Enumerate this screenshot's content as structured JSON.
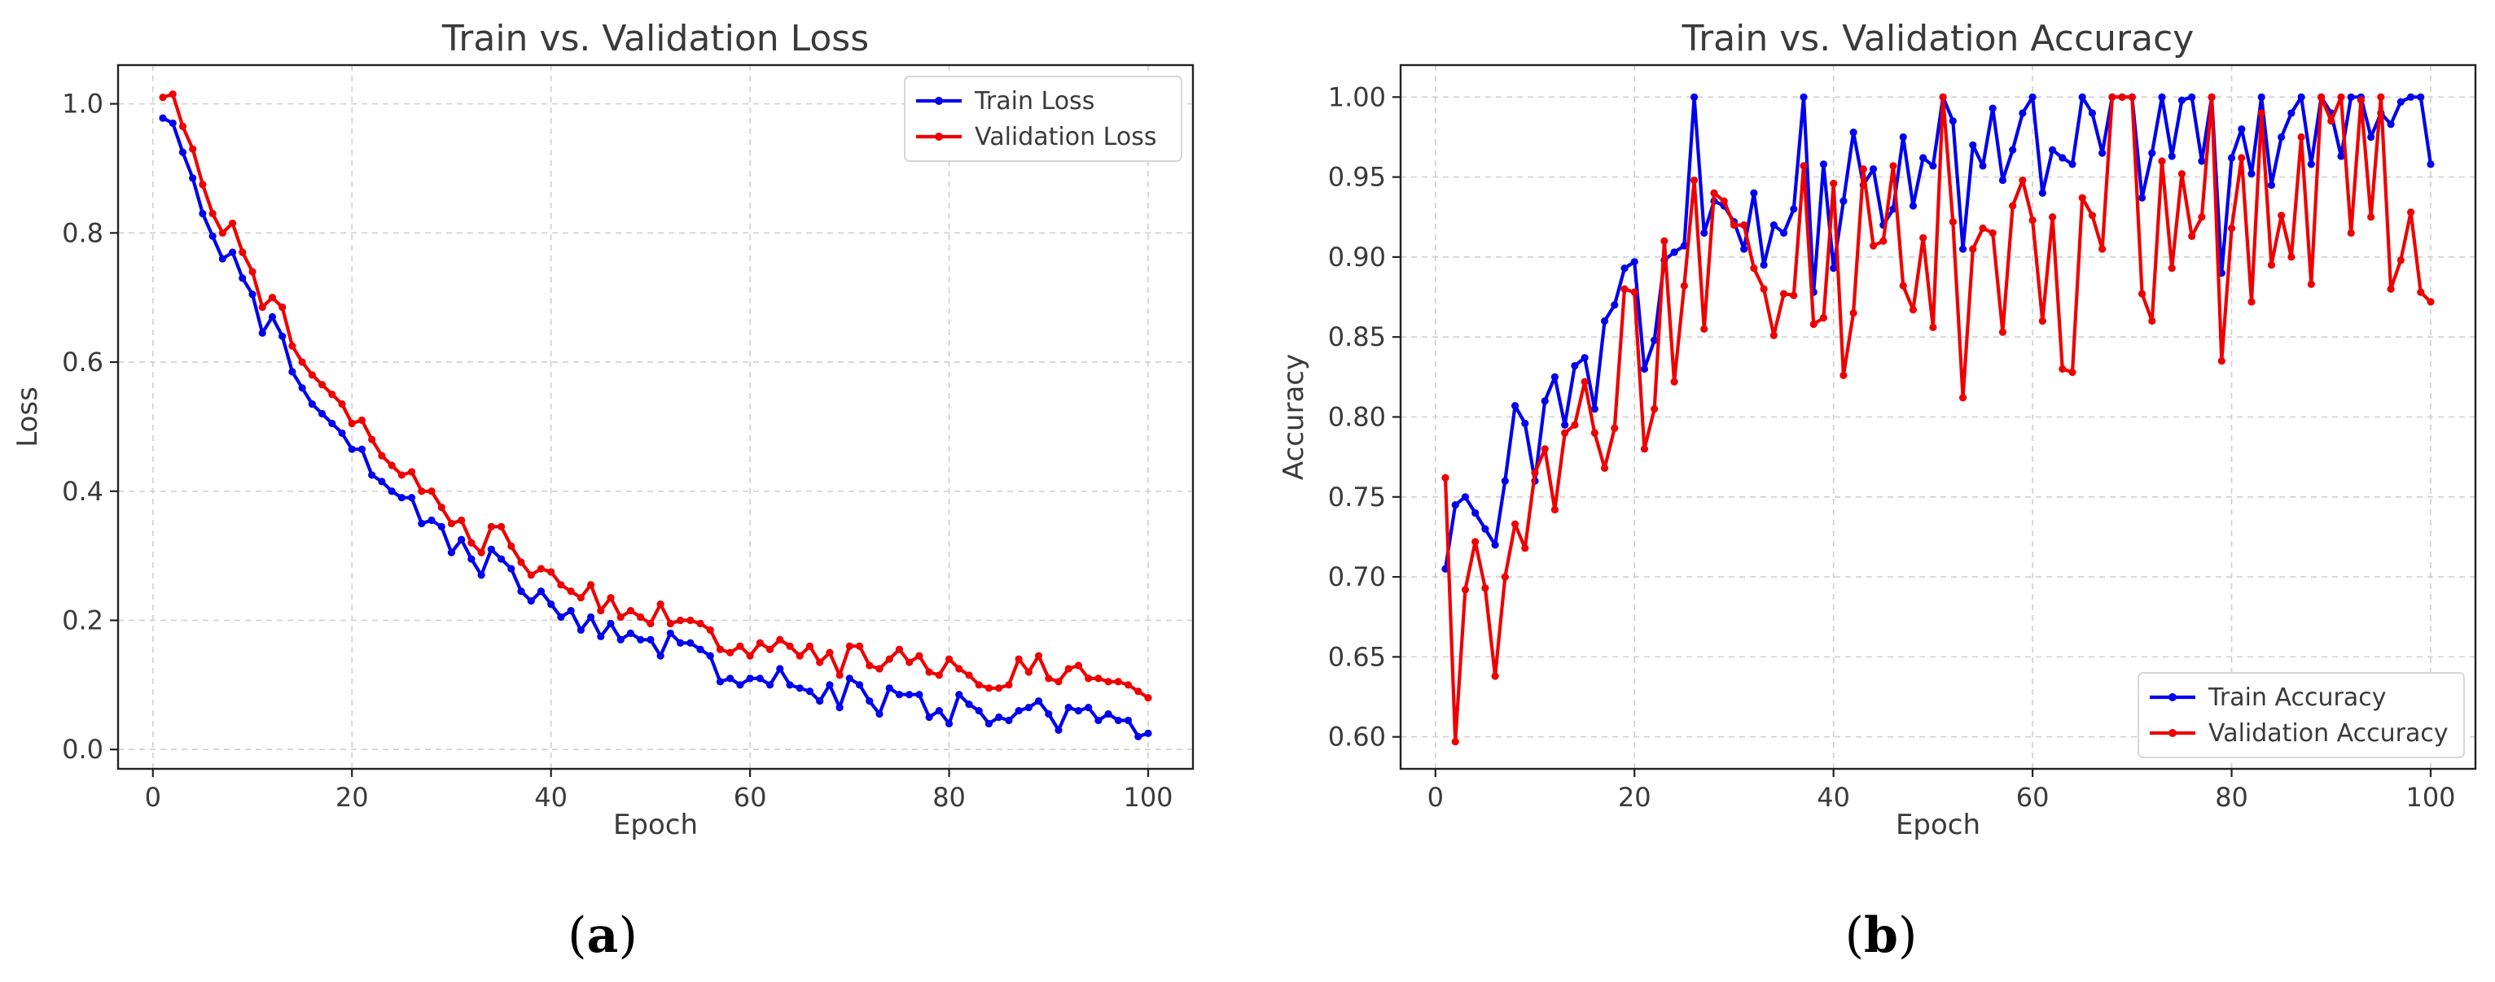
{
  "chart_data": [
    {
      "type": "line",
      "title": "Train vs. Validation Loss",
      "xlabel": "Epoch",
      "ylabel": "Loss",
      "caption": "a",
      "xlim": [
        -3.5,
        104.5
      ],
      "ylim": [
        -0.03,
        1.06
      ],
      "xticks": [
        0,
        20,
        40,
        60,
        80,
        100
      ],
      "yticks": [
        0.0,
        0.2,
        0.4,
        0.6,
        0.8,
        1.0
      ],
      "ytick_decimals": 1,
      "grid": true,
      "legend_position": "top-right",
      "series": [
        {
          "name": "Train Loss",
          "color": "#0000ee",
          "x_start": 1,
          "values": [
            0.978,
            0.97,
            0.925,
            0.885,
            0.83,
            0.795,
            0.76,
            0.77,
            0.73,
            0.705,
            0.645,
            0.67,
            0.64,
            0.585,
            0.56,
            0.535,
            0.52,
            0.505,
            0.49,
            0.465,
            0.465,
            0.425,
            0.415,
            0.4,
            0.39,
            0.39,
            0.35,
            0.355,
            0.345,
            0.305,
            0.325,
            0.295,
            0.27,
            0.31,
            0.295,
            0.28,
            0.245,
            0.23,
            0.245,
            0.225,
            0.205,
            0.215,
            0.185,
            0.205,
            0.175,
            0.195,
            0.17,
            0.18,
            0.17,
            0.17,
            0.145,
            0.18,
            0.165,
            0.165,
            0.155,
            0.145,
            0.105,
            0.11,
            0.1,
            0.11,
            0.11,
            0.1,
            0.125,
            0.1,
            0.095,
            0.09,
            0.075,
            0.1,
            0.065,
            0.11,
            0.1,
            0.075,
            0.055,
            0.095,
            0.085,
            0.085,
            0.085,
            0.05,
            0.06,
            0.04,
            0.085,
            0.07,
            0.06,
            0.04,
            0.05,
            0.045,
            0.06,
            0.065,
            0.075,
            0.055,
            0.03,
            0.065,
            0.06,
            0.065,
            0.045,
            0.055,
            0.045,
            0.045,
            0.02,
            0.025
          ]
        },
        {
          "name": "Validation Loss",
          "color": "#ee0000",
          "x_start": 1,
          "values": [
            1.01,
            1.015,
            0.965,
            0.93,
            0.875,
            0.83,
            0.8,
            0.815,
            0.77,
            0.74,
            0.685,
            0.7,
            0.685,
            0.625,
            0.6,
            0.58,
            0.565,
            0.55,
            0.535,
            0.505,
            0.51,
            0.48,
            0.455,
            0.44,
            0.425,
            0.43,
            0.4,
            0.4,
            0.375,
            0.35,
            0.355,
            0.32,
            0.305,
            0.345,
            0.345,
            0.315,
            0.29,
            0.27,
            0.28,
            0.275,
            0.255,
            0.245,
            0.235,
            0.255,
            0.215,
            0.235,
            0.205,
            0.215,
            0.205,
            0.195,
            0.225,
            0.195,
            0.2,
            0.2,
            0.195,
            0.185,
            0.155,
            0.15,
            0.16,
            0.145,
            0.165,
            0.155,
            0.17,
            0.16,
            0.145,
            0.16,
            0.135,
            0.15,
            0.115,
            0.16,
            0.16,
            0.13,
            0.125,
            0.14,
            0.155,
            0.135,
            0.145,
            0.12,
            0.115,
            0.14,
            0.125,
            0.115,
            0.1,
            0.095,
            0.095,
            0.1,
            0.14,
            0.12,
            0.145,
            0.11,
            0.105,
            0.125,
            0.13,
            0.11,
            0.11,
            0.105,
            0.105,
            0.1,
            0.09,
            0.08
          ]
        }
      ]
    },
    {
      "type": "line",
      "title": "Train vs. Validation Accuracy",
      "xlabel": "Epoch",
      "ylabel": "Accuracy",
      "caption": "b",
      "xlim": [
        -3.5,
        104.5
      ],
      "ylim": [
        0.58,
        1.02
      ],
      "xticks": [
        0,
        20,
        40,
        60,
        80,
        100
      ],
      "yticks": [
        0.6,
        0.65,
        0.7,
        0.75,
        0.8,
        0.85,
        0.9,
        0.95,
        1.0
      ],
      "ytick_decimals": 2,
      "grid": true,
      "legend_position": "bottom-right",
      "series": [
        {
          "name": "Train Accuracy",
          "color": "#0000ee",
          "x_start": 1,
          "values": [
            0.705,
            0.745,
            0.75,
            0.74,
            0.73,
            0.72,
            0.76,
            0.807,
            0.796,
            0.76,
            0.81,
            0.825,
            0.795,
            0.832,
            0.837,
            0.805,
            0.86,
            0.87,
            0.893,
            0.897,
            0.83,
            0.848,
            0.898,
            0.903,
            0.907,
            1.0,
            0.915,
            0.935,
            0.932,
            0.922,
            0.905,
            0.94,
            0.895,
            0.92,
            0.915,
            0.93,
            1.0,
            0.878,
            0.958,
            0.893,
            0.935,
            0.978,
            0.945,
            0.955,
            0.92,
            0.93,
            0.975,
            0.932,
            0.962,
            0.957,
            1.0,
            0.985,
            0.905,
            0.97,
            0.957,
            0.993,
            0.948,
            0.967,
            0.99,
            1.0,
            0.94,
            0.967,
            0.962,
            0.958,
            1.0,
            0.99,
            0.965,
            1.0,
            1.0,
            1.0,
            0.937,
            0.965,
            1.0,
            0.963,
            0.998,
            1.0,
            0.96,
            1.0,
            0.89,
            0.962,
            0.98,
            0.952,
            1.0,
            0.945,
            0.975,
            0.99,
            1.0,
            0.958,
            1.0,
            0.99,
            0.963,
            1.0,
            1.0,
            0.975,
            0.99,
            0.983,
            0.997,
            1.0,
            1.0,
            0.958
          ]
        },
        {
          "name": "Validation Accuracy",
          "color": "#ee0000",
          "x_start": 1,
          "values": [
            0.762,
            0.597,
            0.692,
            0.722,
            0.693,
            0.638,
            0.7,
            0.733,
            0.718,
            0.765,
            0.78,
            0.742,
            0.79,
            0.795,
            0.822,
            0.79,
            0.768,
            0.793,
            0.88,
            0.878,
            0.78,
            0.805,
            0.91,
            0.822,
            0.882,
            0.948,
            0.855,
            0.94,
            0.935,
            0.92,
            0.92,
            0.893,
            0.88,
            0.851,
            0.877,
            0.876,
            0.957,
            0.858,
            0.862,
            0.946,
            0.826,
            0.865,
            0.955,
            0.907,
            0.91,
            0.957,
            0.882,
            0.867,
            0.912,
            0.856,
            1.0,
            0.922,
            0.812,
            0.905,
            0.918,
            0.915,
            0.853,
            0.932,
            0.948,
            0.923,
            0.86,
            0.925,
            0.83,
            0.828,
            0.937,
            0.926,
            0.905,
            1.0,
            1.0,
            1.0,
            0.877,
            0.86,
            0.96,
            0.893,
            0.952,
            0.913,
            0.925,
            1.0,
            0.835,
            0.918,
            0.962,
            0.872,
            0.99,
            0.895,
            0.926,
            0.9,
            0.975,
            0.883,
            1.0,
            0.985,
            1.0,
            0.915,
            0.998,
            0.925,
            1.0,
            0.88,
            0.898,
            0.928,
            0.878,
            0.872
          ]
        }
      ]
    }
  ]
}
